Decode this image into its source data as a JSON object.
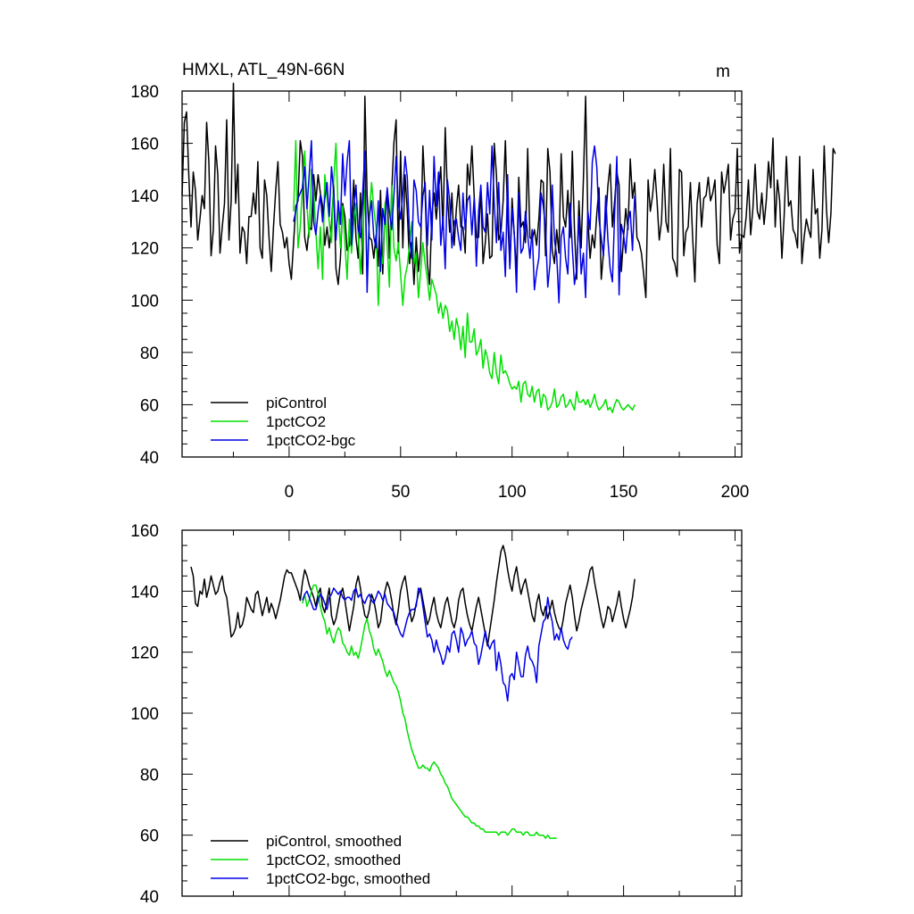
{
  "colors": {
    "picontrol": "#000000",
    "pct": "#00e000",
    "bgc": "#0000e6",
    "axis": "#000000"
  },
  "chart_data": [
    {
      "type": "line",
      "title": "HMXL, ATL_49N-66N",
      "units": "m",
      "xlim": [
        -48,
        203
      ],
      "ylim": [
        40,
        180
      ],
      "xticks": [
        0,
        50,
        100,
        150,
        200
      ],
      "xtick_labels": [
        "0",
        "50",
        "100",
        "150",
        "200"
      ],
      "yticks": [
        40,
        60,
        80,
        100,
        120,
        140,
        160,
        180
      ],
      "ytick_labels": [
        "40",
        "60",
        "80",
        "100",
        "120",
        "140",
        "160",
        "180"
      ],
      "legend": [
        "piControl",
        "1pctCO2",
        "1pctCO2-bgc"
      ],
      "legend_position": "bottom-left",
      "series": [
        {
          "name": "piControl",
          "color": "#000000",
          "x0": -48,
          "values": [
            140,
            168,
            172,
            148,
            128,
            149,
            142,
            123,
            131,
            140,
            135,
            168,
            153,
            117,
            127,
            159,
            148,
            118,
            128,
            137,
            169,
            123,
            138,
            183,
            137,
            152,
            118,
            128,
            126,
            114,
            132,
            132,
            141,
            133,
            153,
            120,
            116,
            146,
            140,
            124,
            111,
            128,
            142,
            153,
            129,
            126,
            120,
            124,
            114,
            108,
            122,
            136,
            138,
            161,
            155,
            124,
            119,
            128,
            127,
            148,
            138,
            148,
            141,
            136,
            121,
            128,
            120,
            129,
            144,
            112,
            106,
            116,
            137,
            132,
            119,
            121,
            129,
            146,
            124,
            116,
            141,
            110,
            178,
            140,
            124,
            123,
            116,
            125,
            113,
            142,
            110,
            135,
            142,
            116,
            141,
            160,
            169,
            118,
            157,
            120,
            148,
            134,
            114,
            122,
            106,
            124,
            111,
            120,
            159,
            141,
            114,
            106,
            133,
            141,
            131,
            142,
            151,
            127,
            166,
            140,
            126,
            141,
            121,
            135,
            144,
            128,
            128,
            118,
            152,
            144,
            159,
            140,
            124,
            124,
            143,
            114,
            122,
            133,
            116,
            117,
            160,
            148,
            123,
            126,
            138,
            161,
            132,
            113,
            139,
            125,
            110,
            147,
            128,
            130,
            122,
            158,
            124,
            123,
            127,
            121,
            131,
            146,
            145,
            117,
            158,
            149,
            119,
            114,
            127,
            118,
            156,
            132,
            128,
            142,
            124,
            157,
            127,
            108,
            138,
            120,
            146,
            178,
            131,
            116,
            125,
            120,
            133,
            143,
            108,
            118,
            131,
            144,
            152,
            128,
            138,
            149,
            144,
            111,
            124,
            135,
            127,
            154,
            139,
            145,
            124,
            122,
            118,
            110,
            101,
            146,
            134,
            140,
            150,
            138,
            123,
            130,
            152,
            130,
            126,
            158,
            116,
            114,
            109,
            150,
            149,
            117,
            126,
            128,
            145,
            124,
            107,
            137,
            145,
            128,
            139,
            140,
            147,
            138,
            141,
            146,
            121,
            114,
            149,
            141,
            146,
            152,
            123,
            131,
            134,
            158,
            118,
            125,
            124,
            132,
            146,
            125,
            135,
            152,
            134,
            131,
            141,
            129,
            138,
            153,
            143,
            162,
            128,
            146,
            138,
            116,
            132,
            155,
            136,
            138,
            127,
            125,
            120,
            155,
            114,
            124,
            131,
            127,
            124,
            150,
            133,
            135,
            116,
            127,
            159,
            135,
            122,
            133,
            158,
            156
          ]
        },
        {
          "name": "1pctCO2",
          "color": "#00e000",
          "x0": 2,
          "values": [
            134,
            161,
            120,
            128,
            144,
            157,
            136,
            124,
            150,
            142,
            126,
            112,
            128,
            108,
            148,
            139,
            130,
            122,
            146,
            160,
            134,
            120,
            136,
            122,
            108,
            131,
            118,
            130,
            137,
            126,
            110,
            125,
            142,
            109,
            133,
            145,
            135,
            128,
            98,
            118,
            114,
            137,
            121,
            105,
            144,
            120,
            115,
            122,
            110,
            98,
            109,
            113,
            121,
            130,
            114,
            118,
            101,
            111,
            122,
            114,
            108,
            100,
            108,
            105,
            102,
            95,
            99,
            93,
            98,
            96,
            88,
            92,
            85,
            93,
            89,
            81,
            90,
            78,
            95,
            84,
            84,
            89,
            79,
            81,
            85,
            74,
            81,
            78,
            72,
            70,
            80,
            72,
            68,
            79,
            72,
            73,
            71,
            68,
            66,
            67,
            66,
            69,
            61,
            68,
            69,
            64,
            63,
            67,
            61,
            65,
            66,
            59,
            64,
            63,
            58,
            59,
            61,
            66,
            59,
            60,
            63,
            64,
            59,
            60,
            62,
            60,
            58,
            65,
            61,
            61,
            62,
            60,
            62,
            59,
            61,
            64,
            60,
            58,
            59,
            60,
            62,
            58,
            59,
            57,
            60,
            62,
            61,
            59,
            58,
            59,
            60,
            59,
            58,
            60
          ]
        },
        {
          "name": "1pctCO2-bgc",
          "color": "#0000e6",
          "x0": 2,
          "values": [
            130,
            134,
            139,
            141,
            143,
            151,
            135,
            148,
            161,
            130,
            125,
            134,
            140,
            130,
            139,
            145,
            132,
            151,
            141,
            123,
            138,
            129,
            156,
            140,
            153,
            161,
            121,
            135,
            144,
            127,
            124,
            141,
            157,
            103,
            132,
            138,
            124,
            120,
            138,
            111,
            135,
            129,
            143,
            134,
            127,
            140,
            155,
            137,
            131,
            141,
            155,
            147,
            125,
            116,
            146,
            142,
            130,
            128,
            140,
            145,
            121,
            142,
            123,
            155,
            136,
            149,
            121,
            132,
            112,
            146,
            138,
            120,
            130,
            131,
            124,
            119,
            141,
            127,
            138,
            140,
            125,
            139,
            113,
            134,
            144,
            128,
            126,
            145,
            133,
            159,
            137,
            122,
            145,
            119,
            126,
            109,
            148,
            112,
            135,
            125,
            103,
            141,
            118,
            120,
            134,
            125,
            116,
            127,
            104,
            111,
            116,
            141,
            136,
            127,
            105,
            114,
            144,
            123,
            117,
            99,
            124,
            128,
            116,
            110,
            137,
            120,
            106,
            112,
            132,
            110,
            118,
            101,
            134,
            127,
            153,
            159,
            151,
            131,
            124,
            117,
            140,
            123,
            112,
            107,
            133,
            155,
            102,
            129,
            125,
            118,
            130,
            134,
            119,
            140
          ]
        }
      ]
    },
    {
      "type": "line",
      "title": "",
      "xlim": [
        -48,
        203
      ],
      "ylim": [
        40,
        160
      ],
      "xticks": [
        0,
        50,
        100,
        150,
        200
      ],
      "yticks": [
        40,
        60,
        80,
        100,
        120,
        140,
        160
      ],
      "ytick_labels": [
        "40",
        "60",
        "80",
        "100",
        "120",
        "140",
        "160"
      ],
      "legend": [
        "piControl, smoothed",
        "1pctCO2, smoothed",
        "1pctCO2-bgc, smoothed"
      ],
      "legend_position": "bottom-left",
      "series": [
        {
          "name": "piControl, smoothed",
          "color": "#000000",
          "x0": -44,
          "values": [
            148,
            145,
            136,
            135,
            140,
            139,
            144,
            138,
            141,
            145,
            142,
            139,
            140,
            143,
            145,
            140,
            138,
            132,
            125,
            126,
            128,
            133,
            128,
            129,
            132,
            138,
            136,
            134,
            133,
            139,
            140,
            136,
            132,
            135,
            138,
            133,
            136,
            134,
            131,
            134,
            137,
            141,
            145,
            147,
            146,
            146,
            144,
            142,
            140,
            137,
            143,
            147,
            145,
            142,
            140,
            138,
            135,
            139,
            141,
            135,
            133,
            137,
            141,
            132,
            129,
            131,
            135,
            139,
            141,
            137,
            132,
            127,
            131,
            135,
            142,
            145,
            141,
            136,
            132,
            131,
            134,
            139,
            137,
            133,
            128,
            130,
            136,
            140,
            143,
            141,
            137,
            132,
            129,
            134,
            140,
            143,
            145,
            140,
            134,
            130,
            132,
            136,
            139,
            141,
            137,
            133,
            129,
            131,
            135,
            138,
            133,
            130,
            128,
            132,
            136,
            138,
            134,
            130,
            128,
            131,
            137,
            140,
            141,
            136,
            132,
            129,
            127,
            131,
            135,
            138,
            134,
            130,
            126,
            122,
            127,
            132,
            137,
            143,
            148,
            153,
            155,
            152,
            147,
            143,
            140,
            145,
            148,
            143,
            139,
            142,
            144,
            140,
            136,
            132,
            130,
            136,
            139,
            134,
            132,
            135,
            131,
            134,
            137,
            133,
            130,
            128,
            127,
            131,
            136,
            139,
            142,
            138,
            132,
            127,
            130,
            134,
            137,
            140,
            143,
            147,
            148,
            143,
            139,
            135,
            131,
            128,
            131,
            135,
            134,
            130,
            133,
            136,
            140,
            135,
            131,
            128,
            131,
            134,
            138,
            144
          ]
        },
        {
          "name": "1pctCO2, smoothed",
          "color": "#00e000",
          "x0": 6,
          "values": [
            136,
            139,
            135,
            137,
            140,
            142,
            142,
            139,
            135,
            132,
            130,
            126,
            128,
            125,
            123,
            126,
            128,
            127,
            123,
            122,
            120,
            119,
            122,
            119,
            120,
            118,
            121,
            125,
            129,
            131,
            127,
            125,
            121,
            119,
            121,
            119,
            117,
            114,
            112,
            114,
            112,
            110,
            109,
            107,
            104,
            100,
            98,
            94,
            91,
            88,
            86,
            84,
            82,
            82,
            83,
            82,
            82,
            81,
            83,
            84,
            83,
            82,
            80,
            79,
            77,
            76,
            74,
            72,
            71,
            70,
            69,
            68,
            67,
            66,
            66,
            65,
            64,
            64,
            63,
            63,
            62,
            62,
            61,
            61,
            61,
            61,
            61,
            61,
            60,
            61,
            61,
            61,
            60,
            61,
            62,
            62,
            61,
            61,
            61,
            60,
            61,
            61,
            60,
            60,
            60,
            61,
            60,
            60,
            60,
            59,
            60,
            59,
            59,
            59,
            59
          ]
        },
        {
          "name": "1pctCO2-bgc, smoothed",
          "color": "#0000e6",
          "x0": 6,
          "values": [
            137,
            139,
            140,
            138,
            136,
            134,
            134,
            137,
            139,
            138,
            136,
            134,
            138,
            139,
            141,
            140,
            139,
            140,
            138,
            137,
            138,
            138,
            137,
            140,
            141,
            138,
            139,
            137,
            136,
            138,
            139,
            137,
            136,
            138,
            140,
            139,
            137,
            139,
            136,
            135,
            134,
            133,
            130,
            128,
            126,
            125,
            128,
            131,
            133,
            134,
            134,
            135,
            141,
            140,
            135,
            130,
            125,
            126,
            124,
            120,
            124,
            121,
            119,
            116,
            118,
            122,
            120,
            126,
            127,
            124,
            120,
            128,
            126,
            122,
            124,
            125,
            127,
            123,
            122,
            116,
            119,
            123,
            127,
            123,
            121,
            123,
            124,
            114,
            120,
            116,
            110,
            109,
            104,
            112,
            113,
            111,
            120,
            116,
            112,
            112,
            119,
            122,
            118,
            117,
            115,
            110,
            122,
            126,
            130,
            131,
            138,
            133,
            130,
            124,
            126,
            124,
            128,
            124,
            122,
            121,
            124,
            125
          ]
        }
      ]
    }
  ]
}
